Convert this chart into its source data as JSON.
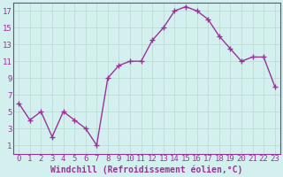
{
  "x": [
    0,
    1,
    2,
    3,
    4,
    5,
    6,
    7,
    8,
    9,
    10,
    11,
    12,
    13,
    14,
    15,
    16,
    17,
    18,
    19,
    20,
    21,
    22,
    23
  ],
  "y": [
    6,
    4,
    5,
    2,
    5,
    4,
    3,
    1,
    9,
    10.5,
    11,
    11,
    13.5,
    15,
    17,
    17.5,
    17,
    16,
    14,
    12.5,
    11,
    11.5,
    11.5,
    8
  ],
  "line_color": "#993399",
  "marker": "+",
  "marker_size": 4,
  "marker_lw": 1.0,
  "line_width": 1.0,
  "xlabel": "Windchill (Refroidissement éolien,°C)",
  "ylabel": "",
  "xlim_min": -0.5,
  "xlim_max": 23.5,
  "ylim_min": 0,
  "ylim_max": 18,
  "yticks": [
    1,
    3,
    5,
    7,
    9,
    11,
    13,
    15,
    17
  ],
  "xticks": [
    0,
    1,
    2,
    3,
    4,
    5,
    6,
    7,
    8,
    9,
    10,
    11,
    12,
    13,
    14,
    15,
    16,
    17,
    18,
    19,
    20,
    21,
    22,
    23
  ],
  "background_color": "#d4f0ee",
  "grid_color": "#b8d8d4",
  "label_color": "#993399",
  "tick_color": "#993399",
  "xlabel_fontsize": 7,
  "tick_fontsize": 6.5,
  "spine_color": "#993399"
}
